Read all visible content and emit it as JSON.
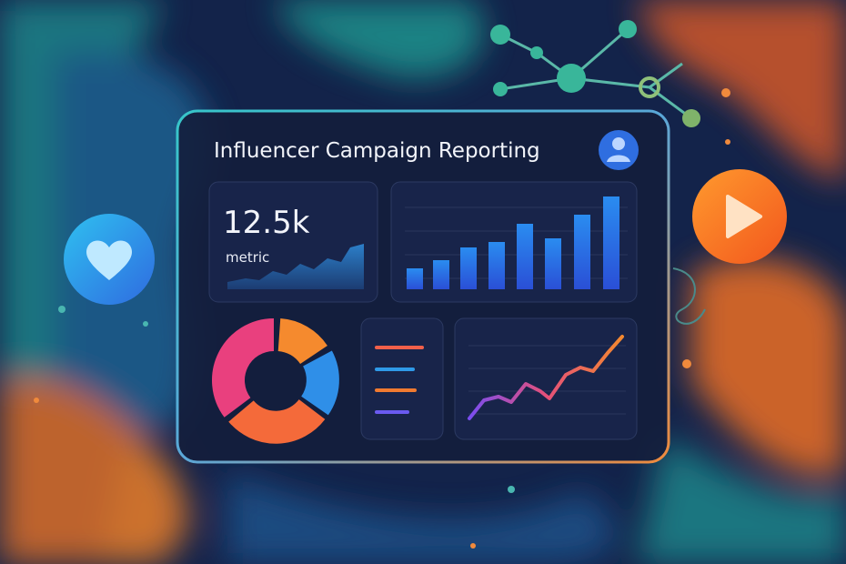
{
  "header": {
    "title": "Influencer Campaign Reporting"
  },
  "kpi": {
    "value": "12.5k",
    "label": "metric"
  }
}
